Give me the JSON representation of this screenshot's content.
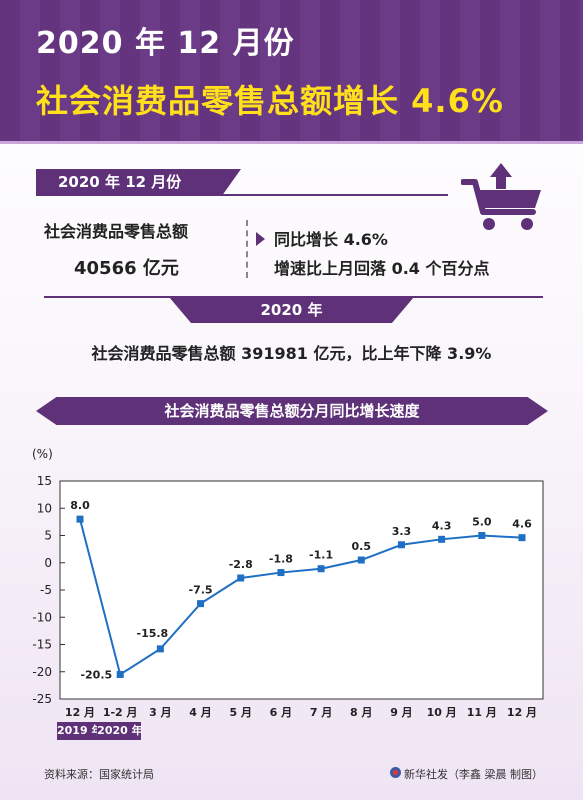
{
  "header": {
    "title_line1": "2020 年 12 月份",
    "title_line2": "社会消费品零售总额增长 4.6%"
  },
  "december": {
    "tag": "2020 年 12 月份",
    "total_label": "社会消费品零售总额",
    "total_value": "40566 亿元",
    "yoy": "同比增长 4.6%",
    "change": "增速比上月回落 0.4 个百分点"
  },
  "year": {
    "tag": "2020 年",
    "summary": "社会消费品零售总额 391981 亿元，比上年下降 3.9%"
  },
  "chart_data": {
    "type": "line",
    "title": "社会消费品零售总额分月同比增长速度",
    "ylabel": "(%)",
    "categories": [
      "12 月",
      "1-2 月",
      "3 月",
      "4 月",
      "5 月",
      "6 月",
      "7 月",
      "8 月",
      "9 月",
      "10 月",
      "11 月",
      "12 月"
    ],
    "values": [
      8.0,
      -20.5,
      -15.8,
      -7.5,
      -2.8,
      -1.8,
      -1.1,
      0.5,
      3.3,
      4.3,
      5.0,
      4.6
    ],
    "value_labels": [
      "8.0",
      "-20.5",
      "-15.8",
      "-7.5",
      "-2.8",
      "-1.8",
      "-1.1",
      "0.5",
      "3.3",
      "4.3",
      "5.0",
      "4.6"
    ],
    "yticks": [
      15,
      10,
      5,
      0,
      -5,
      -10,
      -15,
      -20,
      -25
    ],
    "ylim": [
      -25,
      15
    ],
    "grid": false,
    "line_color": "#1f6fc4",
    "year_tags": [
      "2019 年",
      "2020 年"
    ]
  },
  "footer": {
    "source": "资料来源：国家统计局",
    "credit": "新华社发（李鑫 梁晨 制图）"
  },
  "colors": {
    "accent": "#5e3178",
    "title_yellow": "#ffe01a"
  }
}
